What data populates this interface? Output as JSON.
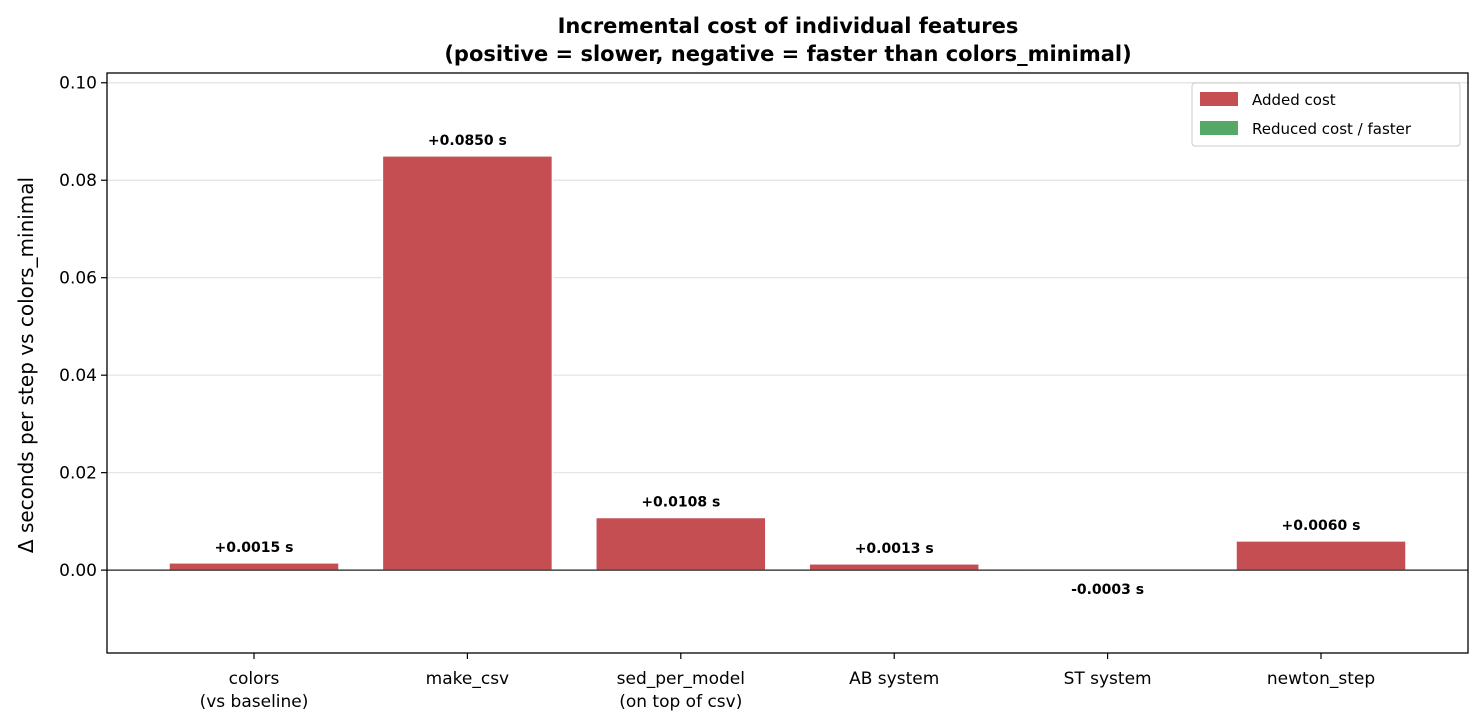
{
  "chart_data": {
    "type": "bar",
    "title": "Incremental cost of individual features",
    "subtitle": "(positive = slower, negative = faster than colors_minimal)",
    "ylabel": "Δ seconds per step vs colors_minimal",
    "xlabel": "",
    "ylim": [
      -0.017,
      0.102
    ],
    "yticks": [
      0.0,
      0.02,
      0.04,
      0.06,
      0.08,
      0.1
    ],
    "ytick_labels": [
      "0.00",
      "0.02",
      "0.04",
      "0.06",
      "0.08",
      "0.10"
    ],
    "grid": "horizontal",
    "zero_line": true,
    "legend_position": "top-right",
    "categories": [
      [
        "colors",
        "(vs baseline)"
      ],
      [
        "make_csv"
      ],
      [
        "sed_per_model",
        "(on top of csv)"
      ],
      [
        "AB system"
      ],
      [
        "ST system"
      ],
      [
        "newton_step"
      ]
    ],
    "values": [
      0.0015,
      0.085,
      0.0108,
      0.0013,
      -0.0003,
      0.006
    ],
    "data_labels": [
      "+0.0015 s",
      "+0.0850 s",
      "+0.0108 s",
      "+0.0013 s",
      "-0.0003 s",
      "+0.0060 s"
    ],
    "legend": [
      {
        "label": "Added cost",
        "color": "#c44e52"
      },
      {
        "label": "Reduced cost / faster",
        "color": "#55a868"
      }
    ],
    "colors": {
      "positive": "#c44e52",
      "negative": "#55a868"
    }
  }
}
